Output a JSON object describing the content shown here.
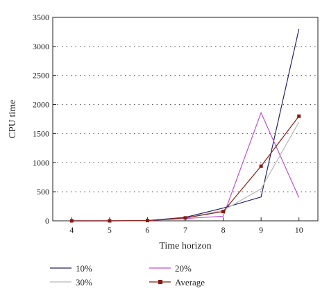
{
  "chart_data": {
    "type": "line",
    "title": "",
    "xlabel": "Time horizon",
    "ylabel": "CPU time",
    "x": [
      4,
      5,
      6,
      7,
      8,
      9,
      10
    ],
    "xlim": [
      3.5,
      10.5
    ],
    "ylim": [
      0,
      3500
    ],
    "y_ticks": [
      0,
      500,
      1000,
      1500,
      2000,
      2500,
      3000,
      3500
    ],
    "grid": "horizontal dotted",
    "legend_position": "bottom",
    "series": [
      {
        "name": "10%",
        "color": "#23236b",
        "marker": "none",
        "values": [
          0,
          0,
          5,
          60,
          220,
          410,
          3300
        ]
      },
      {
        "name": "20%",
        "color": "#c24fd0",
        "marker": "none",
        "values": [
          0,
          0,
          5,
          40,
          80,
          1860,
          400
        ]
      },
      {
        "name": "30%",
        "color": "#b8b8b8",
        "marker": "none",
        "values": [
          0,
          0,
          5,
          50,
          180,
          550,
          1700
        ]
      },
      {
        "name": "Average",
        "color": "#8b1a10",
        "marker": "square",
        "values": [
          0,
          0,
          5,
          50,
          160,
          940,
          1800
        ]
      }
    ]
  }
}
